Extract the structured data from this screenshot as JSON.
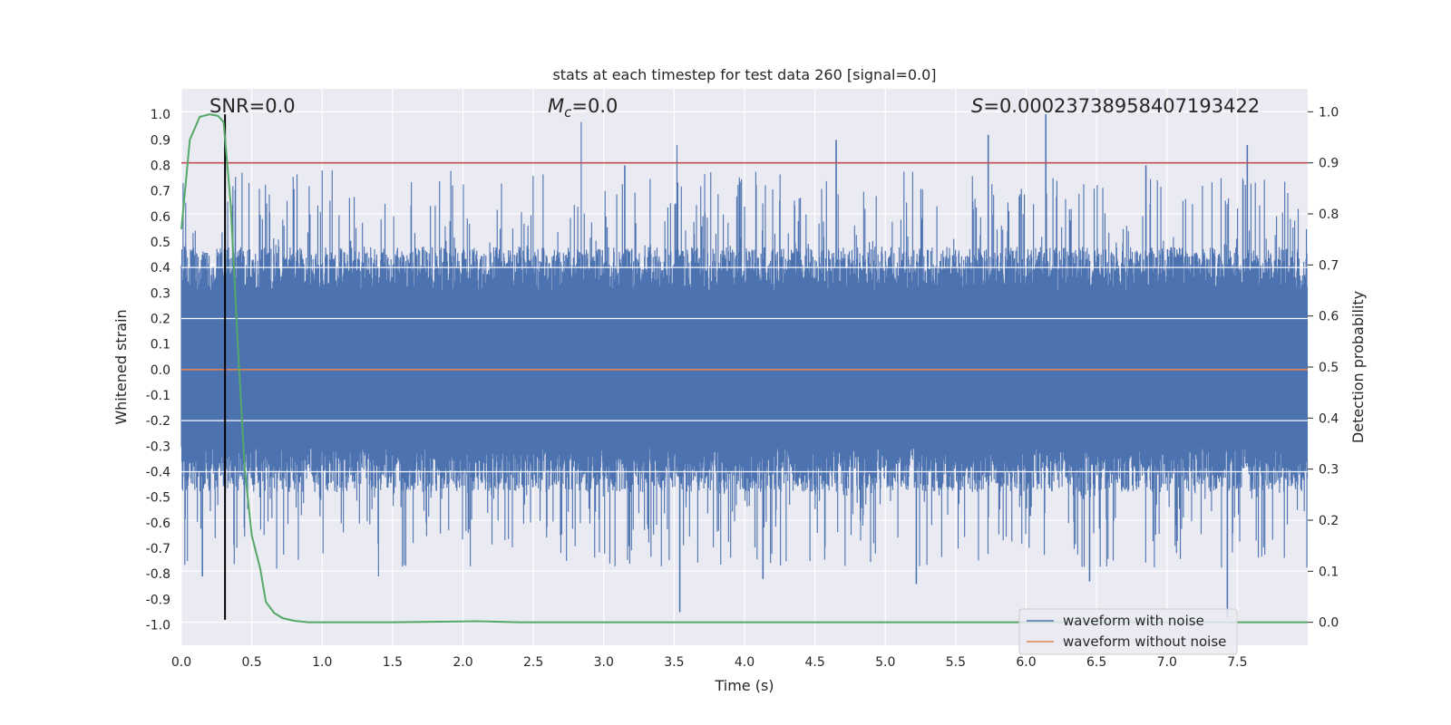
{
  "chart_data": {
    "type": "line",
    "title": "stats at each timestep for test data 260 [signal=0.0]",
    "xlabel": "Time (s)",
    "ylabel_left": "Whitened strain",
    "ylabel_right": "Detection probability",
    "xlim": [
      0.0,
      8.0
    ],
    "ylim_left": [
      -1.08,
      1.1
    ],
    "ylim_right": [
      -0.045,
      1.045
    ],
    "x_ticks": [
      "0.0",
      "0.5",
      "1.0",
      "1.5",
      "2.0",
      "2.5",
      "3.0",
      "3.5",
      "4.0",
      "4.5",
      "5.0",
      "5.5",
      "6.0",
      "6.5",
      "7.0",
      "7.5"
    ],
    "x_tick_values": [
      0.0,
      0.5,
      1.0,
      1.5,
      2.0,
      2.5,
      3.0,
      3.5,
      4.0,
      4.5,
      5.0,
      5.5,
      6.0,
      6.5,
      7.0,
      7.5
    ],
    "y_left_ticks": [
      "1.0",
      "0.9",
      "0.8",
      "0.7",
      "0.6",
      "0.5",
      "0.4",
      "0.3",
      "0.2",
      "0.1",
      "0.0",
      "-0.1",
      "-0.2",
      "-0.3",
      "-0.4",
      "-0.5",
      "-0.6",
      "-0.7",
      "-0.8",
      "-0.9",
      "-1.0"
    ],
    "y_left_tick_values": [
      1.0,
      0.9,
      0.8,
      0.7,
      0.6,
      0.5,
      0.4,
      0.3,
      0.2,
      0.1,
      0.0,
      -0.1,
      -0.2,
      -0.3,
      -0.4,
      -0.5,
      -0.6,
      -0.7,
      -0.8,
      -0.9,
      -1.0
    ],
    "y_right_ticks": [
      "1.0",
      "0.9",
      "0.8",
      "0.7",
      "0.6",
      "0.5",
      "0.4",
      "0.3",
      "0.2",
      "0.1",
      "0.0"
    ],
    "y_right_tick_values": [
      1.0,
      0.9,
      0.8,
      0.7,
      0.6,
      0.5,
      0.4,
      0.3,
      0.2,
      0.1,
      0.0
    ],
    "annotations": {
      "snr": "SNR=0.0",
      "mc_symbol": "M",
      "mc_sub": "c",
      "mc_value": "=0.0",
      "s_symbol": "S",
      "s_value": "=0.00023738958407193422"
    },
    "series": [
      {
        "name": "waveform with noise",
        "color": "#4c72b0",
        "description": "dense noise filling approx -0.45..0.45 with spikes",
        "spike_peaks": [
          {
            "t": 2.84,
            "v": 0.97
          },
          {
            "t": 3.52,
            "v": 0.88
          },
          {
            "t": 4.65,
            "v": 0.9
          },
          {
            "t": 5.73,
            "v": 0.92
          },
          {
            "t": 6.14,
            "v": 1.0
          },
          {
            "t": 7.57,
            "v": 0.88
          },
          {
            "t": 1.0,
            "v": 0.78
          },
          {
            "t": 3.15,
            "v": 0.8
          },
          {
            "t": 6.85,
            "v": 0.8
          }
        ],
        "spike_troughs": [
          {
            "t": 3.54,
            "v": -0.95
          },
          {
            "t": 7.43,
            "v": -0.97
          },
          {
            "t": 0.15,
            "v": -0.81
          },
          {
            "t": 1.4,
            "v": -0.81
          },
          {
            "t": 4.13,
            "v": -0.82
          },
          {
            "t": 5.22,
            "v": -0.84
          },
          {
            "t": 6.45,
            "v": -0.83
          }
        ]
      },
      {
        "name": "waveform without noise",
        "color": "#dd8452",
        "description": "flat at 0.0",
        "constant": 0.0
      },
      {
        "name": "detection probability",
        "color": "#55a868",
        "axis": "right",
        "points": [
          [
            0.0,
            0.77
          ],
          [
            0.06,
            0.945
          ],
          [
            0.13,
            0.99
          ],
          [
            0.2,
            0.995
          ],
          [
            0.26,
            0.992
          ],
          [
            0.3,
            0.98
          ],
          [
            0.35,
            0.82
          ],
          [
            0.4,
            0.55
          ],
          [
            0.45,
            0.3
          ],
          [
            0.5,
            0.17
          ],
          [
            0.56,
            0.105
          ],
          [
            0.6,
            0.04
          ],
          [
            0.66,
            0.018
          ],
          [
            0.72,
            0.008
          ],
          [
            0.8,
            0.003
          ],
          [
            0.9,
            0.0
          ],
          [
            1.5,
            0.0
          ],
          [
            2.1,
            0.002
          ],
          [
            2.4,
            0.0
          ],
          [
            8.0,
            0.0
          ]
        ]
      }
    ],
    "threshold": {
      "axis": "right",
      "value": 0.9,
      "color": "#c44e52"
    },
    "marker_time": {
      "t": 0.31,
      "ymin_left": -0.98,
      "ymax_left": 1.0,
      "color": "#000000"
    },
    "legend": {
      "position": "bottom-right",
      "entries": [
        {
          "label": "waveform with noise",
          "color": "#4c72b0"
        },
        {
          "label": "waveform without noise",
          "color": "#dd8452"
        }
      ]
    },
    "grid": true
  }
}
